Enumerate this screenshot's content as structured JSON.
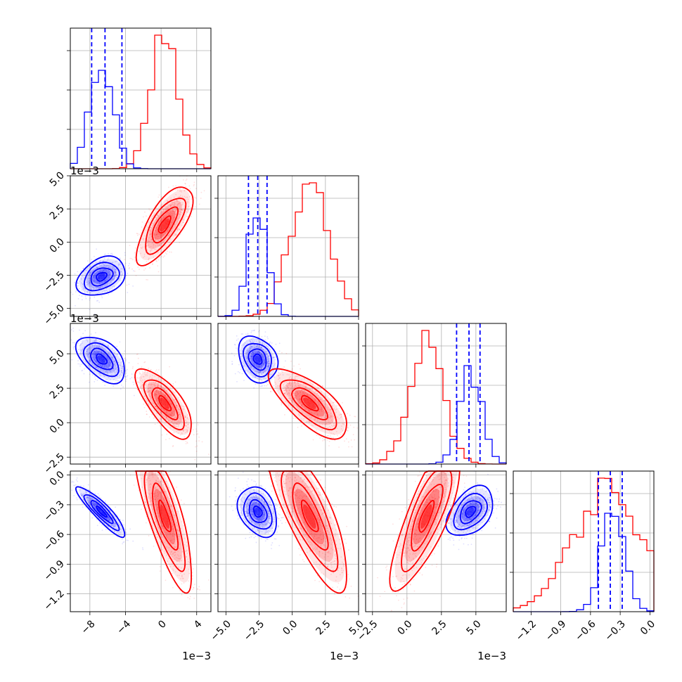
{
  "chart_data": {
    "type": "scatter",
    "title": "",
    "grid": true,
    "colors": {
      "blue": "#0000ff",
      "red": "#ff0000"
    },
    "offset_label": "1e−3",
    "parameters": [
      {
        "range": [
          -10.2,
          5.6
        ],
        "ticks": [
          -8,
          -4,
          0,
          4
        ],
        "tick_labels": [
          "−8",
          "−4",
          "0",
          "4"
        ],
        "show_offset_x": true,
        "show_offset_y": false
      },
      {
        "range": [
          -5.6,
          5.0
        ],
        "ticks": [
          -5.0,
          -2.5,
          0.0,
          2.5,
          5.0
        ],
        "tick_labels": [
          "−5.0",
          "−2.5",
          "0.0",
          "2.5",
          "5.0"
        ],
        "show_offset_x": true,
        "show_offset_y": true
      },
      {
        "range": [
          -3.0,
          7.2
        ],
        "ticks": [
          -2.5,
          0.0,
          2.5,
          5.0
        ],
        "tick_labels": [
          "−2.5",
          "0.0",
          "2.5",
          "5.0"
        ],
        "show_offset_x": true,
        "show_offset_y": true
      },
      {
        "range": [
          -1.38,
          0.04
        ],
        "ticks": [
          -1.2,
          -0.9,
          -0.6,
          -0.3,
          0.0
        ],
        "tick_labels": [
          "−1.2",
          "−0.9",
          "−0.6",
          "−0.3",
          "0.0"
        ],
        "show_offset_x": false,
        "show_offset_y": false
      }
    ],
    "blue": {
      "mean": [
        -6.7,
        -2.6,
        4.6,
        -0.37
      ],
      "cov": [
        [
          1.69,
          0.29,
          -0.52,
          -0.14
        ],
        [
          0.29,
          0.49,
          -0.14,
          -0.025
        ],
        [
          -0.52,
          -0.14,
          0.64,
          0.04
        ],
        [
          -0.14,
          -0.025,
          0.04,
          0.0144
        ]
      ],
      "quantiles": [
        [
          -7.8,
          -6.3,
          -4.4
        ],
        [
          -3.3,
          -2.6,
          -1.9
        ],
        [
          3.6,
          4.5,
          5.3
        ],
        [
          -0.52,
          -0.4,
          -0.28
        ]
      ],
      "hist_peak": 0.7
    },
    "red": {
      "mean": [
        0.4,
        1.3,
        1.4,
        -0.42
      ],
      "cov": [
        [
          2.25,
          1.5,
          -1.3,
          -0.41
        ],
        [
          1.5,
          1.96,
          -1.2,
          -0.38
        ],
        [
          -1.3,
          -1.2,
          1.44,
          0.33
        ],
        [
          -0.41,
          -0.38,
          0.33,
          0.1225
        ]
      ],
      "hist_peak": 0.95
    }
  }
}
